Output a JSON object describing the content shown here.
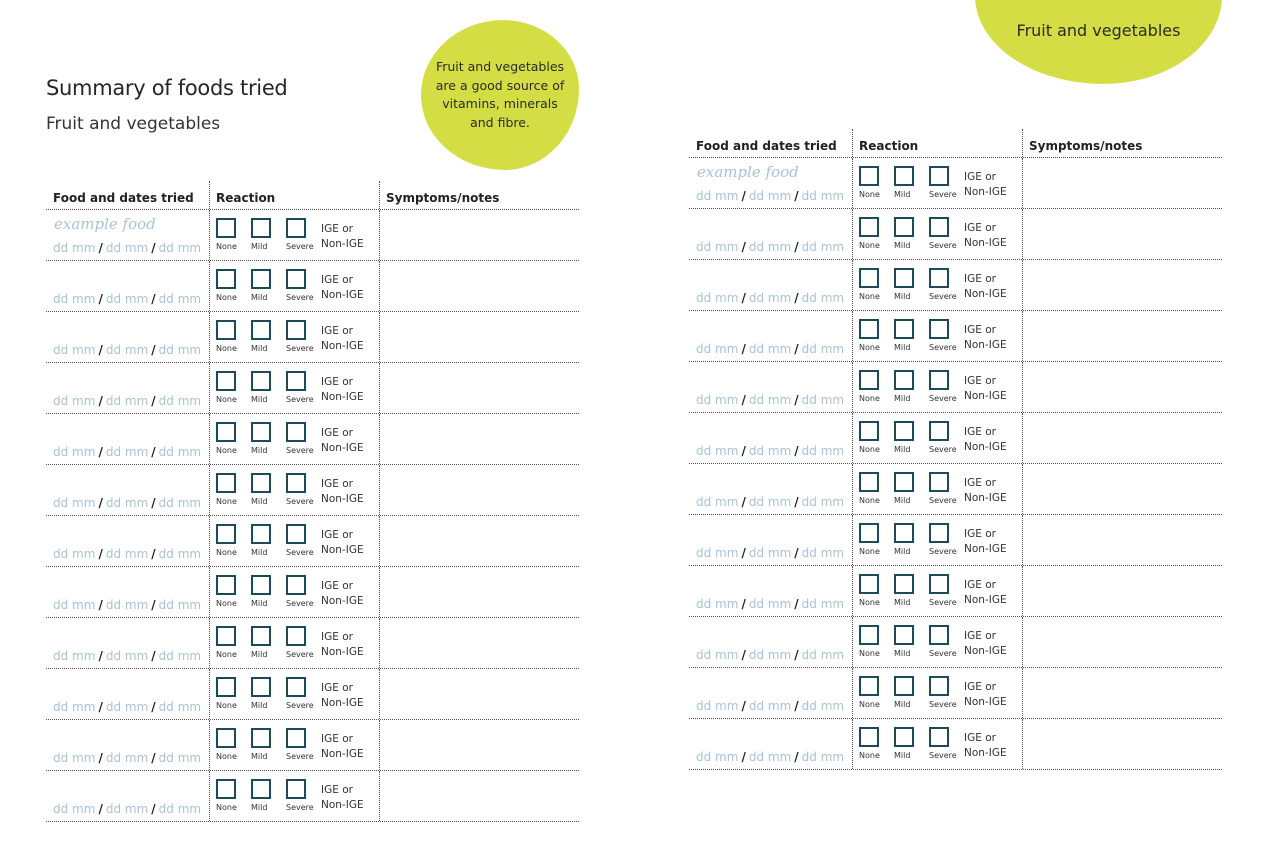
{
  "page": {
    "title": "Summary of foods tried",
    "subtitle": "Fruit and vegetables",
    "callout": "Fruit and vegetables are a good source of vitamins, minerals and fibre.",
    "right_tag": "Fruit and vegetables"
  },
  "table": {
    "headers": {
      "food": "Food and dates tried",
      "reaction": "Reaction",
      "notes": "Symptoms/notes"
    },
    "example_food": "example food",
    "date_placeholder": "dd mm",
    "date_separator": "/",
    "options": [
      "None",
      "Mild",
      "Severe"
    ],
    "ige_line1": "IGE or",
    "ige_line2": "Non-IGE",
    "rows_per_table": 12
  },
  "colors": {
    "accent": "#d5dd44",
    "checkbox": "#1f4a57",
    "placeholder": "#a9c3d4"
  }
}
